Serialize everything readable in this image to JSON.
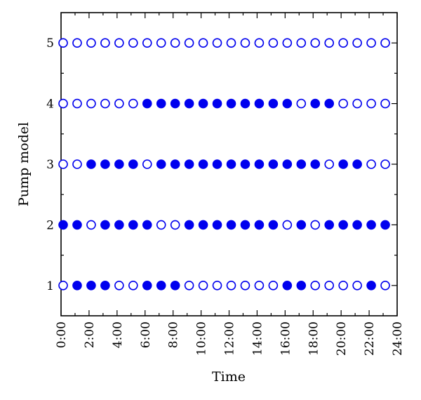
{
  "chart_data": {
    "type": "scatter",
    "title": "",
    "xlabel": "Time",
    "ylabel": "Pump model",
    "x_ticks": [
      "0:00",
      "2:00",
      "4:00",
      "6:00",
      "8:00",
      "10:00",
      "12:00",
      "14:00",
      "16:00",
      "18:00",
      "20:00",
      "22:00",
      "24:00"
    ],
    "y_ticks": [
      "1",
      "2",
      "3",
      "4",
      "5"
    ],
    "xlim": [
      0,
      24
    ],
    "ylim": [
      0.5,
      5.5
    ],
    "grid": false,
    "marker_color": "#0000ee",
    "hours": [
      0,
      1,
      2,
      3,
      4,
      5,
      6,
      7,
      8,
      9,
      10,
      11,
      12,
      13,
      14,
      15,
      16,
      17,
      18,
      19,
      20,
      21,
      22,
      23
    ],
    "legend_meaning": {
      "filled": "on",
      "open": "off"
    },
    "series": [
      {
        "pump": 1,
        "on": [
          0,
          1,
          1,
          1,
          0,
          0,
          1,
          1,
          1,
          0,
          0,
          0,
          0,
          0,
          0,
          0,
          1,
          1,
          0,
          0,
          0,
          0,
          1,
          0
        ]
      },
      {
        "pump": 2,
        "on": [
          1,
          1,
          0,
          1,
          1,
          1,
          1,
          0,
          0,
          1,
          1,
          1,
          1,
          1,
          1,
          1,
          0,
          1,
          0,
          1,
          1,
          1,
          1,
          1
        ]
      },
      {
        "pump": 3,
        "on": [
          0,
          0,
          1,
          1,
          1,
          1,
          0,
          1,
          1,
          1,
          1,
          1,
          1,
          1,
          1,
          1,
          1,
          1,
          1,
          0,
          1,
          1,
          0,
          0
        ]
      },
      {
        "pump": 4,
        "on": [
          0,
          0,
          0,
          0,
          0,
          0,
          1,
          1,
          1,
          1,
          1,
          1,
          1,
          1,
          1,
          1,
          1,
          0,
          1,
          1,
          0,
          0,
          0,
          0
        ]
      },
      {
        "pump": 5,
        "on": [
          0,
          0,
          0,
          0,
          0,
          0,
          0,
          0,
          0,
          0,
          0,
          0,
          0,
          0,
          0,
          0,
          0,
          0,
          0,
          0,
          0,
          0,
          0,
          0
        ]
      }
    ]
  }
}
